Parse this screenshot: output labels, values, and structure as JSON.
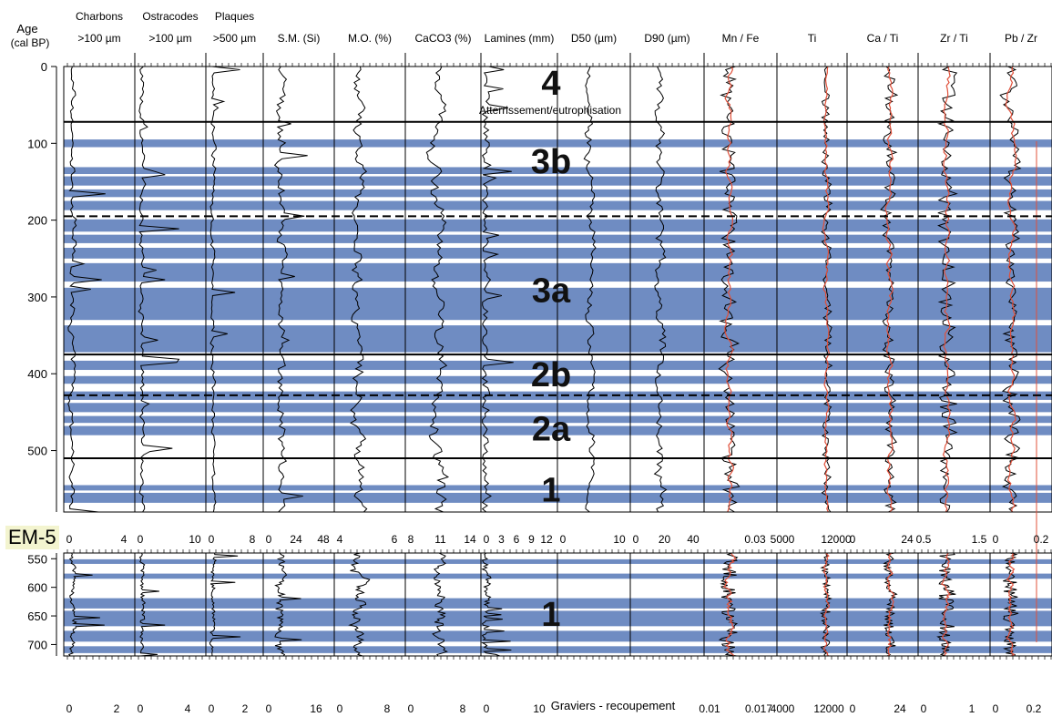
{
  "figure": {
    "core_label": "EM-5",
    "age_label_line1": "Age",
    "age_label_line2": "(cal BP)",
    "bottom_note": "Graviers - recoupement",
    "annotation": "Atterrissement/eutrophisation",
    "colors": {
      "band": "#6f8cc2",
      "curve": "#000000",
      "smooth": "#e0503a"
    }
  },
  "chart_data": {
    "type": "line",
    "columns": [
      {
        "h1": "Charbons",
        "h2": ">100 µm",
        "top_ticks": [
          "0",
          "4"
        ],
        "bottom_ticks": [
          "0",
          "2"
        ]
      },
      {
        "h1": "Ostracodes",
        "h2": ">100 µm",
        "top_ticks": [
          "0",
          "10"
        ],
        "bottom_ticks": [
          "0",
          "4"
        ]
      },
      {
        "h1": "Plaques",
        "h2": ">500 µm",
        "top_ticks": [
          "0",
          "8"
        ],
        "bottom_ticks": [
          "0",
          "2"
        ]
      },
      {
        "h1": "",
        "h2": "S.M. (Si)",
        "top_ticks": [
          "0",
          "24",
          "48"
        ],
        "bottom_ticks": [
          "0",
          "16"
        ]
      },
      {
        "h1": "",
        "h2": "M.O. (%)",
        "top_ticks": [
          "4",
          "6"
        ],
        "bottom_ticks": [
          "0",
          "8"
        ]
      },
      {
        "h1": "",
        "h2": "CaCO3 (%)",
        "top_ticks": [
          "8",
          "11",
          "14"
        ],
        "bottom_ticks": [
          "0",
          "8"
        ]
      },
      {
        "h1": "",
        "h2": "Lamines (mm)",
        "top_ticks": [
          "0",
          "3",
          "6",
          "9",
          "12"
        ],
        "bottom_ticks": [
          "0",
          "10"
        ]
      },
      {
        "h1": "",
        "h2": "D50 (µm)",
        "top_ticks": [
          "0",
          "10"
        ],
        "bottom_ticks": []
      },
      {
        "h1": "",
        "h2": "D90 (µm)",
        "top_ticks": [
          "0",
          "20",
          "40"
        ],
        "bottom_ticks": []
      },
      {
        "h1": "",
        "h2": "Mn / Fe",
        "top_ticks": [
          "0.03"
        ],
        "bottom_ticks": [
          "0.01",
          "0.017"
        ]
      },
      {
        "h1": "",
        "h2": "Ti",
        "top_ticks": [
          "5000",
          "12000"
        ],
        "bottom_ticks": [
          "4000",
          "12000"
        ]
      },
      {
        "h1": "",
        "h2": "Ca / Ti",
        "top_ticks": [
          "0",
          "24"
        ],
        "bottom_ticks": [
          "0",
          "24"
        ]
      },
      {
        "h1": "",
        "h2": "Zr / Ti",
        "top_ticks": [
          "0.5",
          "1.5"
        ],
        "bottom_ticks": [
          "0",
          "1"
        ]
      },
      {
        "h1": "",
        "h2": "Pb / Zr",
        "top_ticks": [
          "0",
          "0.2"
        ],
        "bottom_ticks": [
          "0",
          "0.2"
        ]
      }
    ],
    "upper_axis": {
      "ticks": [
        "0",
        "100",
        "200",
        "300",
        "400",
        "500"
      ],
      "range": [
        0,
        580
      ]
    },
    "lower_axis": {
      "ticks": [
        "550",
        "600",
        "650",
        "700"
      ],
      "range": [
        540,
        720
      ]
    },
    "zones": [
      {
        "label": "4",
        "age": 20
      },
      {
        "label": "3b",
        "age": 122
      },
      {
        "label": "3a",
        "age": 290
      },
      {
        "label": "2b",
        "age": 400
      },
      {
        "label": "2a",
        "age": 470
      },
      {
        "label": "1",
        "age": 550
      },
      {
        "label": "1",
        "age": 645
      }
    ],
    "boundaries": [
      {
        "age": 72,
        "style": "solid"
      },
      {
        "age": 195,
        "style": "dashed"
      },
      {
        "age": 375,
        "style": "solid"
      },
      {
        "age": 428,
        "style": "dashed"
      },
      {
        "age": 510,
        "style": "solid"
      }
    ],
    "upper_bands": [
      [
        95,
        105
      ],
      [
        131,
        140
      ],
      [
        143,
        155
      ],
      [
        160,
        170
      ],
      [
        175,
        187
      ],
      [
        199,
        215
      ],
      [
        219,
        230
      ],
      [
        236,
        250
      ],
      [
        256,
        280
      ],
      [
        288,
        330
      ],
      [
        337,
        372
      ],
      [
        383,
        395
      ],
      [
        403,
        413
      ],
      [
        423,
        434
      ],
      [
        438,
        450
      ],
      [
        455,
        464
      ],
      [
        468,
        480
      ],
      [
        545,
        552
      ],
      [
        555,
        568
      ]
    ],
    "lower_bands": [
      [
        551,
        559
      ],
      [
        576,
        585
      ],
      [
        619,
        637
      ],
      [
        641,
        668
      ],
      [
        676,
        695
      ],
      [
        703,
        715
      ]
    ]
  }
}
